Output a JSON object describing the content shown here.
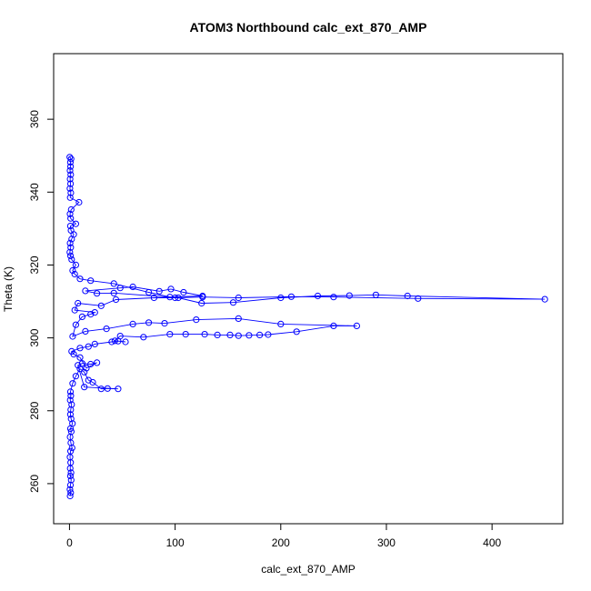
{
  "chart_data": {
    "type": "scatter",
    "title": "ATOM3 Northbound calc_ext_870_AMP",
    "xlabel": "calc_ext_870_AMP",
    "ylabel": "Theta (K)",
    "xlim": [
      -15,
      467
    ],
    "ylim": [
      249,
      378
    ],
    "xticks": [
      0,
      100,
      200,
      300,
      400
    ],
    "yticks": [
      260,
      280,
      300,
      320,
      340,
      360
    ],
    "grid": false,
    "legend": "none",
    "marker": "open-circle",
    "connect_points": true,
    "series": [
      {
        "color": "#0000ff",
        "points": [
          [
            0.6,
            256.6
          ],
          [
            1.2,
            257.5
          ],
          [
            0.4,
            258.4
          ],
          [
            0.9,
            259.6
          ],
          [
            1.6,
            261.0
          ],
          [
            0.8,
            262.1
          ],
          [
            1.4,
            263.0
          ],
          [
            0.7,
            264.2
          ],
          [
            1.1,
            265.8
          ],
          [
            0.5,
            267.3
          ],
          [
            1.0,
            268.9
          ],
          [
            2.5,
            269.8
          ],
          [
            1.3,
            271.2
          ],
          [
            0.6,
            272.8
          ],
          [
            1.7,
            274.3
          ],
          [
            0.9,
            275.1
          ],
          [
            2.8,
            276.5
          ],
          [
            1.5,
            277.8
          ],
          [
            0.8,
            279.0
          ],
          [
            1.2,
            280.3
          ],
          [
            2.0,
            281.7
          ],
          [
            0.7,
            282.9
          ],
          [
            1.3,
            284.1
          ],
          [
            0.9,
            285.2
          ],
          [
            3.0,
            287.5
          ],
          [
            6.0,
            289.5
          ],
          [
            10.0,
            291.5
          ],
          [
            14.0,
            290.6
          ],
          [
            18.0,
            288.4
          ],
          [
            22.0,
            287.8
          ],
          [
            30.0,
            286.0
          ],
          [
            36.0,
            286.1
          ],
          [
            46.0,
            286.0
          ],
          [
            14.0,
            286.5
          ],
          [
            8.0,
            292.5
          ],
          [
            12.0,
            293.0
          ],
          [
            20.0,
            292.8
          ],
          [
            26.0,
            293.2
          ],
          [
            16.0,
            291.7
          ],
          [
            10.0,
            294.6
          ],
          [
            4.0,
            295.5
          ],
          [
            2.0,
            296.3
          ],
          [
            10.0,
            297.2
          ],
          [
            18.0,
            297.6
          ],
          [
            24.0,
            298.3
          ],
          [
            40.0,
            298.9
          ],
          [
            46.0,
            299.1
          ],
          [
            53.0,
            298.9
          ],
          [
            43.0,
            299.2
          ],
          [
            48.0,
            300.5
          ],
          [
            70.0,
            300.2
          ],
          [
            95.0,
            301.0
          ],
          [
            110.0,
            301.0
          ],
          [
            128.0,
            301.0
          ],
          [
            140.0,
            300.8
          ],
          [
            152.0,
            300.8
          ],
          [
            160.0,
            300.6
          ],
          [
            170.0,
            300.7
          ],
          [
            180.0,
            300.8
          ],
          [
            188.0,
            300.9
          ],
          [
            215.0,
            301.7
          ],
          [
            250.0,
            303.3
          ],
          [
            272.0,
            303.3
          ],
          [
            200.0,
            303.8
          ],
          [
            160.0,
            305.3
          ],
          [
            120.0,
            305.0
          ],
          [
            90.0,
            304.0
          ],
          [
            75.0,
            304.2
          ],
          [
            60.0,
            303.8
          ],
          [
            35.0,
            302.5
          ],
          [
            15.0,
            301.8
          ],
          [
            3.0,
            300.4
          ],
          [
            6.0,
            303.6
          ],
          [
            12.0,
            305.8
          ],
          [
            20.0,
            306.5
          ],
          [
            24.0,
            307.0
          ],
          [
            5.0,
            307.6
          ],
          [
            8.0,
            309.5
          ],
          [
            30.0,
            308.8
          ],
          [
            44.0,
            310.5
          ],
          [
            80.0,
            311.0
          ],
          [
            100.0,
            311.0
          ],
          [
            126.0,
            311.2
          ],
          [
            160.0,
            311.0
          ],
          [
            210.0,
            311.3
          ],
          [
            250.0,
            311.2
          ],
          [
            330.0,
            310.8
          ],
          [
            450.0,
            310.6
          ],
          [
            320.0,
            311.5
          ],
          [
            290.0,
            311.8
          ],
          [
            265.0,
            311.6
          ],
          [
            235.0,
            311.5
          ],
          [
            200.0,
            311.0
          ],
          [
            155.0,
            309.7
          ],
          [
            125.0,
            309.5
          ],
          [
            103.0,
            311.0
          ],
          [
            42.0,
            312.3
          ],
          [
            26.0,
            312.2
          ],
          [
            15.0,
            312.9
          ],
          [
            48.0,
            313.7
          ],
          [
            60.0,
            314.0
          ],
          [
            85.0,
            312.8
          ],
          [
            96.0,
            313.4
          ],
          [
            108.0,
            312.5
          ],
          [
            126.0,
            311.5
          ],
          [
            95.0,
            311.2
          ],
          [
            75.0,
            312.5
          ],
          [
            42.0,
            314.9
          ],
          [
            20.0,
            315.7
          ],
          [
            10.0,
            316.2
          ],
          [
            5.0,
            317.5
          ],
          [
            3.0,
            318.5
          ],
          [
            6.0,
            320.0
          ],
          [
            2.0,
            321.5
          ],
          [
            1.0,
            322.5
          ],
          [
            0.3,
            323.5
          ],
          [
            1.2,
            324.8
          ],
          [
            0.6,
            326.0
          ],
          [
            2.0,
            327.1
          ],
          [
            4.0,
            328.4
          ],
          [
            1.4,
            329.5
          ],
          [
            0.8,
            330.7
          ],
          [
            6.0,
            331.3
          ],
          [
            1.1,
            332.8
          ],
          [
            0.5,
            334.0
          ],
          [
            1.6,
            335.2
          ],
          [
            9.0,
            337.2
          ],
          [
            0.7,
            338.5
          ],
          [
            1.3,
            339.8
          ],
          [
            0.4,
            341.0
          ],
          [
            1.0,
            342.3
          ],
          [
            0.6,
            343.6
          ],
          [
            1.2,
            344.8
          ],
          [
            0.5,
            345.9
          ],
          [
            1.0,
            347.0
          ],
          [
            0.8,
            348.2
          ],
          [
            1.5,
            349.1
          ],
          [
            0.2,
            349.6
          ]
        ]
      }
    ]
  }
}
